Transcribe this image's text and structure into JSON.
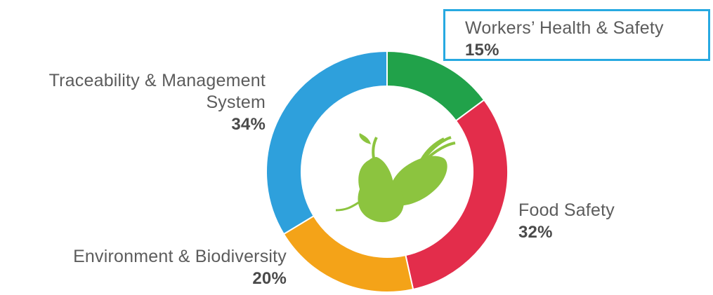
{
  "chart_data": {
    "type": "pie",
    "donut": true,
    "highlighted_slice": "Workers’ Health & Safety",
    "slices": [
      {
        "label": "Workers’ Health & Safety",
        "percent_label": "15%",
        "value": 15,
        "color": "#21a24a"
      },
      {
        "label": "Food Safety",
        "percent_label": "32%",
        "value": 32,
        "color": "#e32d4b"
      },
      {
        "label": "Environment & Biodiversity",
        "percent_label": "20%",
        "value": 20,
        "color": "#f4a318"
      },
      {
        "label": "Traceability & Management System",
        "percent_label": "34%",
        "value": 34,
        "color": "#2ea0dc"
      }
    ],
    "center_icon": "vegetable-icon",
    "icon_color": "#8cc43f",
    "highlight_color": "#27a9e1"
  },
  "labels": {
    "workers": {
      "name": "Workers’ Health & Safety",
      "pct": "15%"
    },
    "food": {
      "name": "Food Safety",
      "pct": "32%"
    },
    "environment": {
      "name": "Environment & Biodiversity",
      "pct": "20%"
    },
    "traceability": {
      "name_line1": "Traceability & Management",
      "name_line2": "System",
      "pct": "34%"
    }
  }
}
